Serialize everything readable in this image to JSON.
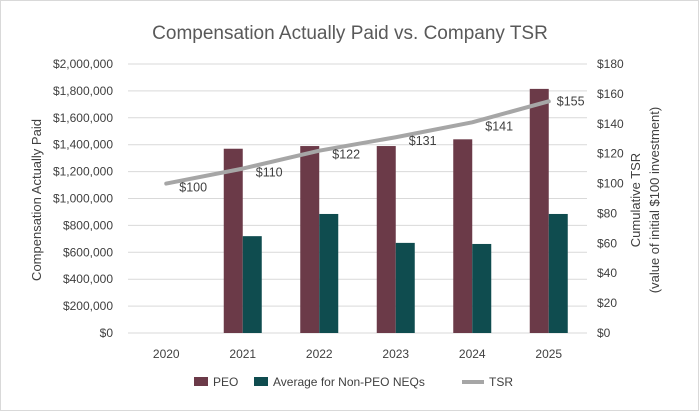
{
  "chart_data": {
    "type": "bar",
    "title": "Compensation Actually Paid vs. Company TSR",
    "categories": [
      "2020",
      "2021",
      "2022",
      "2023",
      "2024",
      "2025"
    ],
    "ylabel": "Compensation Actually Paid",
    "y2label_line1": "Cumulative TSR",
    "y2label_line2": "(value of initial $100 investment)",
    "ylim": [
      0,
      2000000
    ],
    "y2lim": [
      0,
      180
    ],
    "y_ticks": [
      "$0",
      "$200,000",
      "$400,000",
      "$600,000",
      "$800,000",
      "$1,000,000",
      "$1,200,000",
      "$1,400,000",
      "$1,600,000",
      "$1,800,000",
      "$2,000,000"
    ],
    "y2_ticks": [
      "$0",
      "$20",
      "$40",
      "$60",
      "$80",
      "$100",
      "$120",
      "$140",
      "$160",
      "$180"
    ],
    "series": [
      {
        "name": "PEO",
        "type": "bar",
        "color": "#6b3a48",
        "values": [
          0,
          1370000,
          1390000,
          1390000,
          1440000,
          1815000
        ]
      },
      {
        "name": "Average for Non-PEO NEQs",
        "type": "bar",
        "color": "#0f4c4f",
        "values": [
          0,
          720000,
          885000,
          670000,
          662000,
          885000
        ]
      },
      {
        "name": "TSR",
        "type": "line",
        "axis": "secondary",
        "color": "#a6a6a6",
        "values": [
          100,
          110,
          122,
          131,
          141,
          155
        ],
        "labels": [
          "$100",
          "$110",
          "$122",
          "$131",
          "$141",
          "$155"
        ]
      }
    ],
    "legend_position": "bottom"
  }
}
